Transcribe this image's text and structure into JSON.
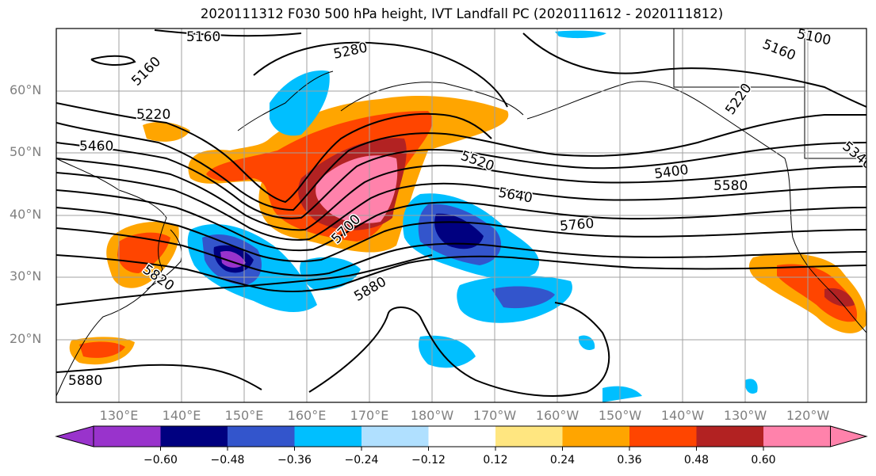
{
  "title": "2020111312 F030 500 hPa height, IVT Landfall PC (2020111612 - 2020111812)",
  "lat_labels": [
    "60°N",
    "50°N",
    "40°N",
    "30°N",
    "20°N"
  ],
  "lon_labels": [
    "130°E",
    "140°E",
    "150°E",
    "160°E",
    "170°E",
    "180°W",
    "170°W",
    "160°W",
    "150°W",
    "140°W",
    "130°W",
    "120°W"
  ],
  "contour_labels": [
    "5160",
    "5160",
    "5280",
    "5100",
    "5160",
    "5220",
    "5460",
    "5520",
    "5400",
    "5340",
    "5640",
    "5580",
    "5760",
    "5700",
    "5820",
    "5880",
    "5880",
    "5220"
  ],
  "colorbar": {
    "ticks": [
      "−0.60",
      "−0.48",
      "−0.36",
      "−0.24",
      "−0.12",
      "0.12",
      "0.24",
      "0.36",
      "0.48",
      "0.60"
    ],
    "colors": [
      "#9933cc",
      "#000080",
      "#3355cc",
      "#00bfff",
      "#b0e0ff",
      "#ffffff",
      "#ffe680",
      "#ffa500",
      "#ff4500",
      "#b22222",
      "#ff82ab"
    ]
  }
}
